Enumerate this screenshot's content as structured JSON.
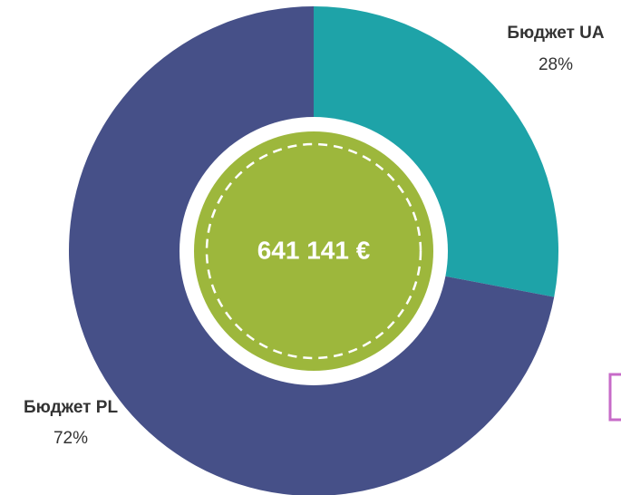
{
  "chart_data": {
    "type": "donut",
    "center_label": "641 141 €",
    "categories": [
      "Бюджет UA",
      "Бюджет PL"
    ],
    "values": [
      28,
      72
    ],
    "value_labels": [
      "28%",
      "72%"
    ],
    "colors": [
      "#1ea3a8",
      "#465088"
    ],
    "center_color": "#9db73c"
  }
}
